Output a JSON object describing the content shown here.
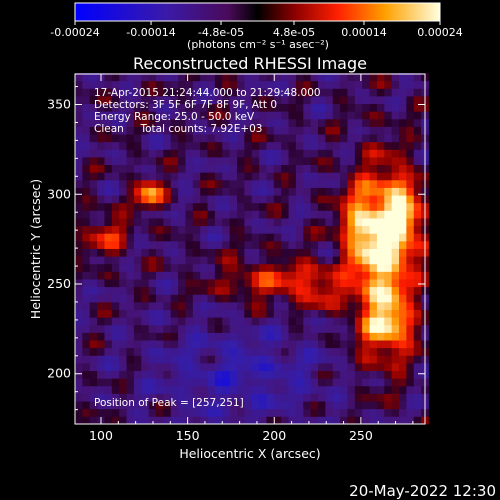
{
  "chart_data": {
    "type": "heatmap",
    "title": "Reconstructed RHESSI Image",
    "xlabel": "Heliocentric X (arcsec)",
    "ylabel": "Heliocentric Y (arcsec)",
    "xlim": [
      85,
      287
    ],
    "ylim": [
      172,
      367
    ],
    "x_ticks": [
      100,
      150,
      200,
      250
    ],
    "y_ticks": [
      200,
      250,
      300,
      350
    ],
    "colorbar": {
      "range": [
        -0.00024,
        0.00024
      ],
      "tick_values": [
        -0.00024,
        -0.00014,
        -4.8e-05,
        4.8e-05,
        0.00014,
        0.00024
      ],
      "tick_labels": [
        "-0.00024",
        "-0.00014",
        "-4.8e-05",
        "4.8e-05",
        "0.00014",
        "0.00024"
      ],
      "unit_label": "(photons cm⁻² s⁻¹ asec⁻²)"
    },
    "annotations": [
      "17-Apr-2015 21:24:44.000 to 21:29:48.000",
      "Detectors: 3F 5F 6F 7F 8F 9F, Att 0",
      "Energy Range: 25.0 - 50.0 keV",
      "Clean     Total counts: 7.92E+03"
    ],
    "peak_label": "Position of Peak = [257,251]",
    "peak_position": [
      257,
      251
    ],
    "sources": [
      {
        "x": 262,
        "y": 262,
        "sx": 12,
        "sy": 35,
        "amp": 1.0
      },
      {
        "x": 248,
        "y": 284,
        "sx": 8,
        "sy": 14,
        "amp": 0.55
      },
      {
        "x": 274,
        "y": 288,
        "sx": 9,
        "sy": 16,
        "amp": 0.7
      },
      {
        "x": 268,
        "y": 226,
        "sx": 10,
        "sy": 10,
        "amp": 0.5
      },
      {
        "x": 128,
        "y": 300,
        "sx": 6,
        "sy": 6,
        "amp": 0.8
      },
      {
        "x": 197,
        "y": 252,
        "sx": 22,
        "sy": 9,
        "amp": 0.45
      },
      {
        "x": 103,
        "y": 277,
        "sx": 10,
        "sy": 9,
        "amp": 0.45
      },
      {
        "x": 225,
        "y": 248,
        "sx": 10,
        "sy": 8,
        "amp": 0.4
      }
    ]
  },
  "footer": {
    "timestamp": "20-May-2022 12:30"
  }
}
